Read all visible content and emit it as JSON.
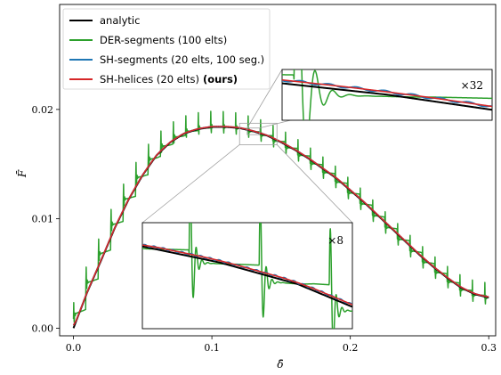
{
  "chart_data": {
    "type": "line",
    "xlabel": "δ̄",
    "ylabel": "F̄",
    "xlim": [
      -0.01,
      0.305
    ],
    "ylim": [
      -0.0007,
      0.0296
    ],
    "xticks": [
      "0.0",
      "0.1",
      "0.2",
      "0.3"
    ],
    "yticks": [
      "0.00",
      "0.01",
      "0.02"
    ],
    "grid": false,
    "legend_position": "top-left",
    "legend": {
      "analytic": "analytic",
      "der": "DER-segments (100 elts)",
      "shs": "SH-segments (20 elts, 100 seg.)",
      "shh": "SH-helices (20 elts)",
      "shh_suffix": "(ours)"
    },
    "series": [
      {
        "name": "analytic",
        "color": "#000000",
        "x": [
          0,
          0.01,
          0.02,
          0.03,
          0.04,
          0.05,
          0.06,
          0.07,
          0.08,
          0.09,
          0.1,
          0.11,
          0.12,
          0.13,
          0.14,
          0.15,
          0.16,
          0.17,
          0.18,
          0.19,
          0.2,
          0.21,
          0.22,
          0.23,
          0.24,
          0.25,
          0.26,
          0.27,
          0.28,
          0.29,
          0.3
        ],
        "y": [
          0,
          0.0033,
          0.0062,
          0.0092,
          0.0118,
          0.014,
          0.0158,
          0.017,
          0.0178,
          0.0182,
          0.0184,
          0.0184,
          0.0183,
          0.018,
          0.0176,
          0.017,
          0.0163,
          0.0155,
          0.0146,
          0.0137,
          0.0126,
          0.0115,
          0.0103,
          0.0091,
          0.0079,
          0.0067,
          0.0056,
          0.0046,
          0.0037,
          0.0031,
          0.0028
        ]
      },
      {
        "name": "SH-helices (20 elts)",
        "color": "#d62728"
      },
      {
        "name": "SH-segments (20 elts, 100 seg.)",
        "color": "#1f77b4"
      },
      {
        "name": "DER-segments (100 elts)",
        "color": "#2ca02c",
        "segment_period": 0.009
      }
    ],
    "insets": [
      {
        "label": "×32",
        "xlim": [
          0.1255,
          0.1345
        ],
        "color": "#000000"
      },
      {
        "label": "×8",
        "xlim": [
          0.12,
          0.147
        ],
        "color": "#000000"
      }
    ]
  }
}
